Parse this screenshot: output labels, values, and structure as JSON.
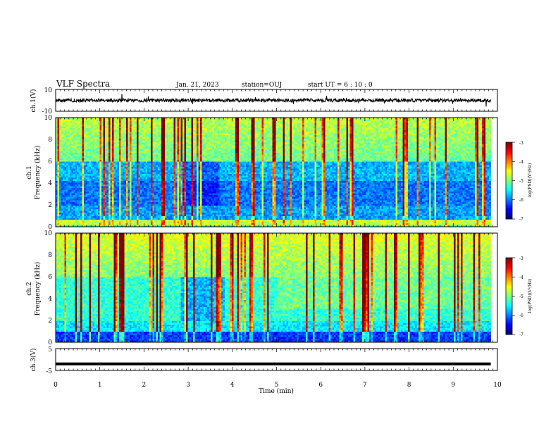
{
  "header": {
    "title": "VLF Spectra",
    "date": "Jan. 21, 2023",
    "station": "station=OUJ",
    "start": "start UT =  6 : 10 : 0"
  },
  "chart_data": [
    {
      "type": "line",
      "id": "ch1_waveform",
      "ylabel": "ch.1(V)",
      "yticks": [
        "10",
        "-10"
      ],
      "ylim": [
        -10,
        10
      ],
      "xlim": [
        0,
        10
      ],
      "x_extent": [
        0,
        9.85
      ],
      "baseline_level": 0,
      "color": "#000000"
    },
    {
      "type": "heatmap",
      "id": "ch1_spectrogram",
      "ylabel_top": "ch.1",
      "ylabel": "Frequency (kHz)",
      "yticks": [
        "0",
        "2",
        "4",
        "6",
        "8",
        "10"
      ],
      "ylim": [
        0,
        10
      ],
      "xlim": [
        0,
        10
      ],
      "x_extent": [
        0,
        9.85
      ],
      "colorbar": {
        "label": "log(PSD)(V²/Hz)",
        "ticks": [
          "-3",
          "-4",
          "-5",
          "-6",
          "-7"
        ],
        "range": [
          -7,
          -3
        ],
        "colormap": "jet"
      }
    },
    {
      "type": "heatmap",
      "id": "ch2_spectrogram",
      "ylabel_top": "ch.2",
      "ylabel": "Frequency (kHz)",
      "yticks": [
        "0",
        "2",
        "4",
        "6",
        "8",
        "10"
      ],
      "ylim": [
        0,
        10
      ],
      "xlim": [
        0,
        10
      ],
      "x_extent": [
        0,
        9.85
      ],
      "colorbar": {
        "label": "log(PSD)(V²/Hz)",
        "ticks": [
          "-3",
          "-4",
          "-5",
          "-6",
          "-7"
        ],
        "range": [
          -7,
          -3
        ],
        "colormap": "jet"
      }
    },
    {
      "type": "line",
      "id": "ch3_waveform",
      "ylabel": "ch.3(V)",
      "yticks": [
        "5",
        "-5"
      ],
      "ylim": [
        -5,
        5
      ],
      "xlim": [
        0,
        10
      ],
      "x_extent": [
        0,
        9.85
      ],
      "baseline_level": -2,
      "color": "#000000",
      "xlabel": "Time (min)",
      "xticks": [
        "0",
        "1",
        "2",
        "3",
        "4",
        "5",
        "6",
        "7",
        "8",
        "9",
        "10"
      ]
    }
  ]
}
